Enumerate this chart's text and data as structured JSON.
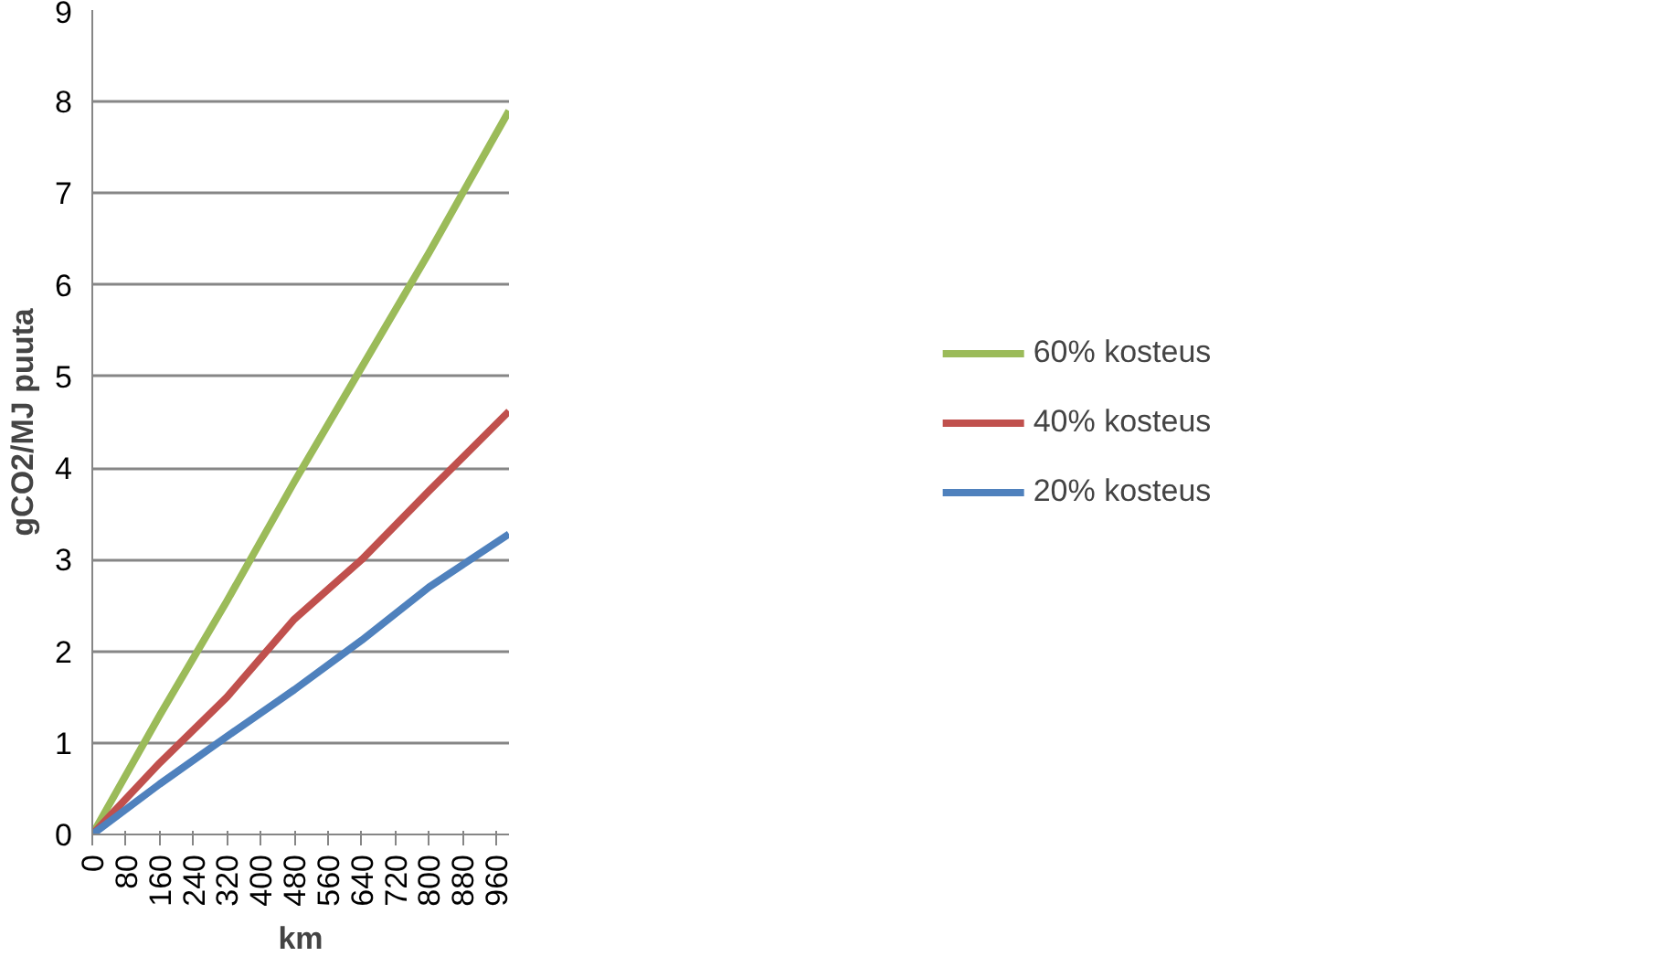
{
  "chart_data": {
    "type": "line",
    "xlabel": "km",
    "ylabel": "gCO2/MJ puuta",
    "xlim": [
      0,
      990
    ],
    "xticks": [
      0,
      80,
      160,
      240,
      320,
      400,
      480,
      560,
      640,
      720,
      800,
      880,
      960
    ],
    "ylim": [
      0,
      9
    ],
    "yticks": [
      0,
      1,
      2,
      3,
      4,
      5,
      6,
      7,
      8,
      9
    ],
    "grid": "y",
    "legend": "right",
    "marker": "none",
    "line_style": "solid",
    "series": [
      {
        "name": "60% kosteus",
        "color": "#9bbb59",
        "x": [
          0,
          160,
          320,
          480,
          640,
          800,
          990
        ],
        "values": [
          0,
          1.3,
          2.55,
          3.85,
          5.1,
          6.35,
          7.9
        ]
      },
      {
        "name": "40% kosteus",
        "color": "#c0504d",
        "x": [
          0,
          160,
          320,
          480,
          640,
          800,
          990
        ],
        "values": [
          0,
          0.78,
          1.5,
          2.35,
          3.0,
          3.75,
          4.62
        ]
      },
      {
        "name": "20% kosteus",
        "color": "#4f81bd",
        "x": [
          0,
          160,
          320,
          480,
          640,
          800,
          990
        ],
        "values": [
          0,
          0.55,
          1.07,
          1.58,
          2.12,
          2.7,
          3.28
        ]
      }
    ]
  }
}
